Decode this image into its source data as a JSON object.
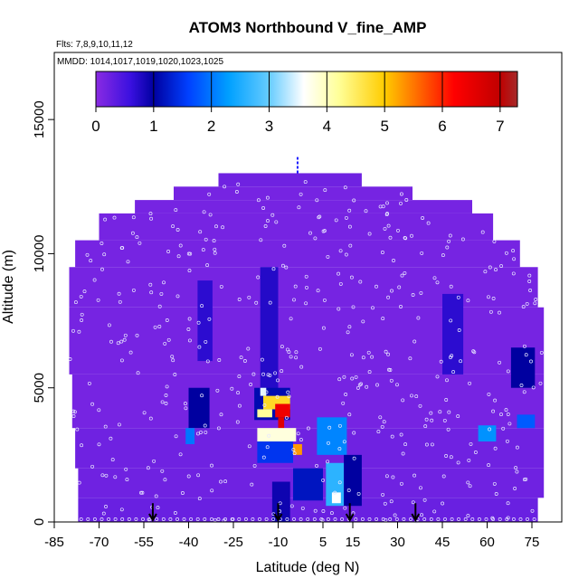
{
  "chart_data": {
    "type": "heatmap",
    "title": "ATOM3 Northbound V_fine_AMP",
    "subtitle_flights": "Flts: 7,8,9,10,11,12",
    "subtitle_dates": "MMDD: 1014,1017,1019,1020,1023,1025",
    "xlabel": "Latitude (deg N)",
    "ylabel": "Altitude (m)",
    "xlim": [
      -85,
      85
    ],
    "ylim": [
      0,
      17500
    ],
    "x_ticks": [
      -85,
      -70,
      -55,
      -40,
      -25,
      -10,
      5,
      15,
      30,
      45,
      60,
      75
    ],
    "y_ticks": [
      0,
      5000,
      10000,
      15000
    ],
    "colorbar": {
      "ticks": [
        0,
        1,
        2,
        3,
        4,
        5,
        6,
        7
      ],
      "range": [
        0,
        7.3
      ],
      "stops": [
        {
          "v": 0.0,
          "c": "#8A2BE2"
        },
        {
          "v": 0.6,
          "c": "#3A10E0"
        },
        {
          "v": 1.0,
          "c": "#0000A0"
        },
        {
          "v": 1.6,
          "c": "#0040FF"
        },
        {
          "v": 2.3,
          "c": "#00A0FF"
        },
        {
          "v": 3.0,
          "c": "#66CCFF"
        },
        {
          "v": 3.6,
          "c": "#FFFFFF"
        },
        {
          "v": 4.2,
          "c": "#FFFF99"
        },
        {
          "v": 5.0,
          "c": "#FFCC00"
        },
        {
          "v": 5.6,
          "c": "#FF6600"
        },
        {
          "v": 6.2,
          "c": "#FF0000"
        },
        {
          "v": 7.0,
          "c": "#C00000"
        },
        {
          "v": 7.3,
          "c": "#A52A2A"
        }
      ]
    },
    "cells": [
      {
        "lat": [
          -77,
          77
        ],
        "alt": [
          0,
          900
        ],
        "v": 0.25
      },
      {
        "lat": [
          -77,
          79
        ],
        "alt": [
          900,
          2000
        ],
        "v": 0.2
      },
      {
        "lat": [
          -78,
          79
        ],
        "alt": [
          2000,
          3500
        ],
        "v": 0.2
      },
      {
        "lat": [
          -79,
          79
        ],
        "alt": [
          3500,
          5500
        ],
        "v": 0.15
      },
      {
        "lat": [
          -80,
          79
        ],
        "alt": [
          5500,
          8000
        ],
        "v": 0.15
      },
      {
        "lat": [
          -80,
          77
        ],
        "alt": [
          8000,
          9500
        ],
        "v": 0.15
      },
      {
        "lat": [
          -78,
          71
        ],
        "alt": [
          9500,
          10500
        ],
        "v": 0.15
      },
      {
        "lat": [
          -70,
          62
        ],
        "alt": [
          10500,
          11500
        ],
        "v": 0.15
      },
      {
        "lat": [
          -58,
          55
        ],
        "alt": [
          11500,
          12000
        ],
        "v": 0.15
      },
      {
        "lat": [
          -45,
          35
        ],
        "alt": [
          12000,
          12500
        ],
        "v": 0.15
      },
      {
        "lat": [
          -30,
          18
        ],
        "alt": [
          12500,
          13000
        ],
        "v": 0.2
      },
      {
        "lat": [
          -40,
          -33
        ],
        "alt": [
          3500,
          5000
        ],
        "v": 1.0
      },
      {
        "lat": [
          -41,
          -38
        ],
        "alt": [
          2900,
          3500
        ],
        "v": 2.0
      },
      {
        "lat": [
          -37,
          -32
        ],
        "alt": [
          6000,
          9000
        ],
        "v": 0.7
      },
      {
        "lat": [
          -16,
          -10
        ],
        "alt": [
          4500,
          9500
        ],
        "v": 0.75
      },
      {
        "lat": [
          -18,
          -6
        ],
        "alt": [
          3800,
          5000
        ],
        "v": 1.1
      },
      {
        "lat": [
          -16,
          -14
        ],
        "alt": [
          4700,
          5000
        ],
        "v": 3.5
      },
      {
        "lat": [
          -15,
          -6
        ],
        "alt": [
          4200,
          4700
        ],
        "v": 4.8
      },
      {
        "lat": [
          -17,
          -12
        ],
        "alt": [
          3900,
          4200
        ],
        "v": 4.2
      },
      {
        "lat": [
          -11,
          -6
        ],
        "alt": [
          3900,
          4400
        ],
        "v": 6.4
      },
      {
        "lat": [
          -10,
          -8
        ],
        "alt": [
          3500,
          3900
        ],
        "v": 6.6
      },
      {
        "lat": [
          -17,
          -4
        ],
        "alt": [
          3000,
          3500
        ],
        "v": 3.8
      },
      {
        "lat": [
          -5,
          -2
        ],
        "alt": [
          2500,
          2900
        ],
        "v": 5.3
      },
      {
        "lat": [
          -17,
          -5
        ],
        "alt": [
          2200,
          3000
        ],
        "v": 1.5
      },
      {
        "lat": [
          3,
          13
        ],
        "alt": [
          2500,
          3900
        ],
        "v": 2.1
      },
      {
        "lat": [
          6,
          12
        ],
        "alt": [
          600,
          2200
        ],
        "v": 2.6
      },
      {
        "lat": [
          8,
          11
        ],
        "alt": [
          700,
          1100
        ],
        "v": 3.6
      },
      {
        "lat": [
          -5,
          5
        ],
        "alt": [
          800,
          2000
        ],
        "v": 1.2
      },
      {
        "lat": [
          -12,
          -6
        ],
        "alt": [
          0,
          1500
        ],
        "v": 0.9
      },
      {
        "lat": [
          12,
          18
        ],
        "alt": [
          600,
          2500
        ],
        "v": 1.0
      },
      {
        "lat": [
          57,
          63
        ],
        "alt": [
          3000,
          3600
        ],
        "v": 2.2
      },
      {
        "lat": [
          68,
          76
        ],
        "alt": [
          5000,
          6500
        ],
        "v": 1.0
      },
      {
        "lat": [
          70,
          76
        ],
        "alt": [
          3500,
          4000
        ],
        "v": 1.8
      },
      {
        "lat": [
          45,
          52
        ],
        "alt": [
          5500,
          8500
        ],
        "v": 0.7
      }
    ],
    "arrows": [
      {
        "lat": -52,
        "alt_top": 700
      },
      {
        "lat": -10,
        "alt_top": 700
      },
      {
        "lat": 14,
        "alt_top": 700
      },
      {
        "lat": 36,
        "alt_top": 700
      }
    ],
    "plume_marker": {
      "lat": -3.5,
      "alt": [
        13000,
        13600
      ]
    }
  }
}
